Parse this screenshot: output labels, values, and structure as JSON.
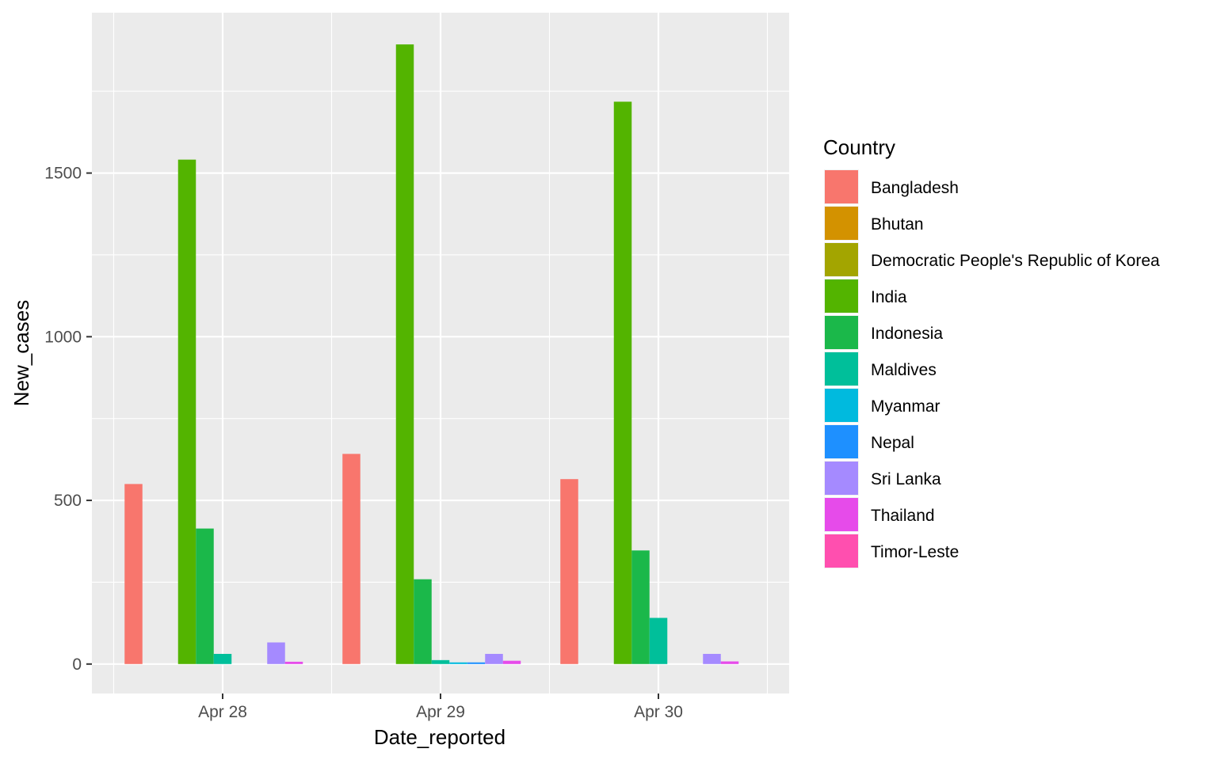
{
  "chart_data": {
    "type": "bar",
    "xlabel": "Date_reported",
    "ylabel": "New_cases",
    "categories": [
      "Apr 28",
      "Apr 29",
      "Apr 30"
    ],
    "yticks": [
      0,
      500,
      1000,
      1500
    ],
    "ylim": [
      -90,
      1990
    ],
    "grid": true,
    "legend": {
      "title": "Country",
      "position": "right"
    },
    "series": [
      {
        "name": "Bangladesh",
        "color": "#F8766D",
        "values": [
          550,
          642,
          565
        ]
      },
      {
        "name": "Bhutan",
        "color": "#D39200",
        "values": [
          0,
          0,
          0
        ]
      },
      {
        "name": "Democratic People's Republic of Korea",
        "color": "#A3A500",
        "values": [
          0,
          0,
          0
        ]
      },
      {
        "name": "India",
        "color": "#53B400",
        "values": [
          1541,
          1893,
          1718
        ]
      },
      {
        "name": "Indonesia",
        "color": "#1BB84A",
        "values": [
          414,
          259,
          347
        ]
      },
      {
        "name": "Maldives",
        "color": "#00BF9A",
        "values": [
          31,
          12,
          141
        ]
      },
      {
        "name": "Myanmar",
        "color": "#00BADE",
        "values": [
          0,
          5,
          0
        ]
      },
      {
        "name": "Nepal",
        "color": "#1E90FF",
        "values": [
          0,
          5,
          0
        ]
      },
      {
        "name": "Sri Lanka",
        "color": "#A58AFF",
        "values": [
          66,
          31,
          31
        ]
      },
      {
        "name": "Thailand",
        "color": "#E64BEA",
        "values": [
          7,
          10,
          8
        ]
      },
      {
        "name": "Timor-Leste",
        "color": "#FF4FAF",
        "values": [
          0,
          0,
          0
        ]
      }
    ]
  }
}
